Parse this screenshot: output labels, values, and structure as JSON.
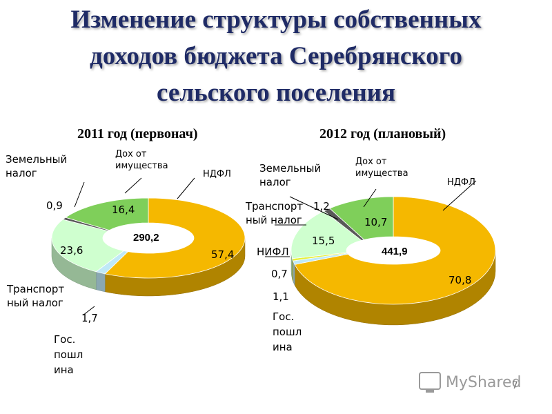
{
  "title": "Изменение структуры собственных\nдоходов бюджета Серебрянского\nсельского поселения",
  "watermark": "MyShared",
  "page_number": "7",
  "colors": {
    "ndfl": "#f5b800",
    "transport": "#cfffcf",
    "property": "#7fcf5a",
    "land": "#595959",
    "gos_poshlina": "#bfe9f7",
    "nifl": "#e6f03a",
    "title": "#1f2b66"
  },
  "chart_data": [
    {
      "type": "pie",
      "title": "2011 год (первонач)",
      "center_label": "290,2",
      "series": [
        {
          "name": "НДФЛ",
          "value": 57.4,
          "label": "57,4",
          "color": "#f5b800"
        },
        {
          "name": "Гос. пошлина",
          "value": 1.7,
          "label": "1,7",
          "color": "#bfe9f7"
        },
        {
          "name": "Транспортный налог",
          "value": 23.6,
          "label": "23,6",
          "color": "#cfffcf"
        },
        {
          "name": "Земельный налог",
          "value": 0.9,
          "label": "0,9",
          "color": "#595959"
        },
        {
          "name": "Дох от имущества",
          "value": 16.4,
          "label": "16,4",
          "color": "#7fcf5a"
        }
      ],
      "annotations": [
        {
          "text": "Земельный\nналог"
        },
        {
          "text": "Дох от\nимущества"
        },
        {
          "text": "НДФЛ"
        },
        {
          "text": "Транспорт\nный налог"
        },
        {
          "text": "Гос.\nпошл\nина"
        }
      ]
    },
    {
      "type": "pie",
      "title": "2012 год (плановый)",
      "center_label": "441,9",
      "series": [
        {
          "name": "НДФЛ",
          "value": 70.8,
          "label": "70,8",
          "color": "#f5b800"
        },
        {
          "name": "Гос. пошлина",
          "value": 1.1,
          "label": "1,1",
          "color": "#bfe9f7"
        },
        {
          "name": "НИФЛ",
          "value": 0.7,
          "label": "0,7",
          "color": "#e6f03a"
        },
        {
          "name": "Транспортный налог",
          "value": 15.5,
          "label": "15,5",
          "color": "#cfffcf"
        },
        {
          "name": "Земельный налог",
          "value": 1.2,
          "label": "1,2",
          "color": "#595959"
        },
        {
          "name": "Дох от имущества",
          "value": 10.7,
          "label": "10,7",
          "color": "#7fcf5a"
        }
      ],
      "annotations": [
        {
          "text": "Земельный\nналог"
        },
        {
          "text": "Дох от\nимущества"
        },
        {
          "text": "НДФЛ"
        },
        {
          "text": "Транспорт\nный налог"
        },
        {
          "text": "НИФЛ"
        },
        {
          "text": "Гос.\nпошл\nина"
        }
      ]
    }
  ]
}
